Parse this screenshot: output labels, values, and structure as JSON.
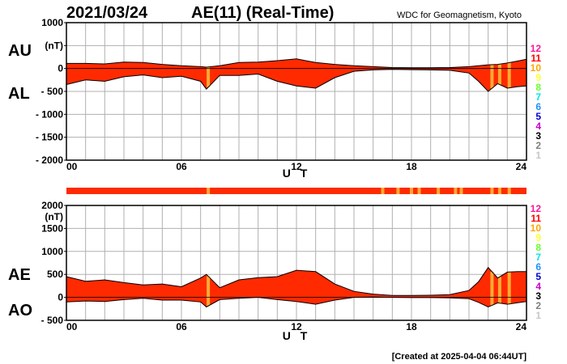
{
  "header": {
    "date": "2021/03/24",
    "index_title": "AE(11) (Real-Time)",
    "organization": "WDC for Geomagnetism, Kyoto"
  },
  "footer": {
    "created": "[Created at 2025-04-04 06:44UT]"
  },
  "quality_legend": {
    "levels": [
      "12",
      "11",
      "10",
      "9",
      "8",
      "7",
      "6",
      "5",
      "4",
      "3",
      "2",
      "1"
    ],
    "colors": [
      "#ff1493",
      "#ff0000",
      "#ffa500",
      "#ffff33",
      "#66ff33",
      "#00e5ee",
      "#1e90ff",
      "#0000cd",
      "#cc00cc",
      "#000000",
      "#7f7f7f",
      "#c8c8c8"
    ]
  },
  "colors": {
    "fill": "#ff2a00",
    "highlight": "#ffaa33",
    "bar": "#ff2a00",
    "grid": "#b0b0b0"
  },
  "chart_data": [
    {
      "type": "area",
      "panel": "AU/AL",
      "ylabel_top": "AU",
      "ylabel_bottom": "AL",
      "unit": "(nT)",
      "ylim": [
        -2000,
        1000
      ],
      "yticks": [
        1000,
        500,
        0,
        -500,
        -1000,
        -1500,
        -2000
      ],
      "ytick_labels": [
        "1000",
        "(nT)",
        "0",
        "- 500",
        "- 1000",
        "- 1500",
        "- 2000"
      ],
      "xlim": [
        0,
        24
      ],
      "xticks": [
        0,
        6,
        12,
        18,
        24
      ],
      "xtick_labels": [
        "00",
        "06",
        "12",
        "18",
        "24"
      ],
      "xlabel": "U T",
      "grid": true,
      "x": [
        0,
        1,
        2,
        3,
        4,
        5,
        6,
        7,
        7.3,
        8,
        9,
        10,
        11,
        12,
        13,
        14,
        15,
        16,
        17,
        18,
        19,
        20,
        21,
        21.5,
        22,
        22.5,
        23,
        23.5,
        24
      ],
      "series": [
        {
          "name": "AU",
          "values": [
            110,
            110,
            100,
            140,
            130,
            90,
            60,
            40,
            30,
            60,
            130,
            140,
            170,
            210,
            130,
            90,
            60,
            40,
            20,
            15,
            15,
            20,
            40,
            60,
            80,
            90,
            120,
            160,
            200
          ]
        },
        {
          "name": "AL",
          "values": [
            -350,
            -250,
            -280,
            -180,
            -140,
            -200,
            -170,
            -280,
            -450,
            -150,
            -150,
            -120,
            -280,
            -380,
            -430,
            -200,
            -60,
            -30,
            -20,
            -25,
            -30,
            -40,
            -100,
            -280,
            -500,
            -330,
            -430,
            -400,
            -380
          ]
        }
      ],
      "highlight_hours": [
        7.4,
        22.2,
        22.6,
        23.1
      ]
    },
    {
      "type": "area",
      "panel": "AE/AO",
      "ylabel_top": "AE",
      "ylabel_bottom": "AO",
      "unit": "(nT)",
      "ylim": [
        -500,
        2000
      ],
      "yticks": [
        2000,
        1500,
        1000,
        500,
        0,
        -500
      ],
      "ytick_labels": [
        "2000",
        "1500",
        "1000",
        "500",
        "0",
        "- 500"
      ],
      "xlim": [
        0,
        24
      ],
      "xticks": [
        0,
        6,
        12,
        18,
        24
      ],
      "xtick_labels": [
        "00",
        "06",
        "12",
        "18",
        "24"
      ],
      "xlabel": "U T",
      "grid": true,
      "x": [
        0,
        1,
        2,
        3,
        4,
        5,
        6,
        7,
        7.3,
        8,
        9,
        10,
        11,
        12,
        13,
        14,
        15,
        16,
        17,
        18,
        19,
        20,
        21,
        21.5,
        22,
        22.5,
        23,
        23.5,
        24
      ],
      "series": [
        {
          "name": "AE",
          "values": [
            450,
            350,
            380,
            320,
            270,
            290,
            230,
            420,
            500,
            210,
            380,
            430,
            450,
            590,
            560,
            290,
            130,
            70,
            40,
            40,
            45,
            60,
            150,
            340,
            650,
            420,
            550,
            560,
            560
          ]
        },
        {
          "name": "AO",
          "values": [
            -100,
            -80,
            -90,
            -50,
            -20,
            -60,
            -60,
            -100,
            -210,
            -50,
            -20,
            0,
            -50,
            -90,
            -150,
            -60,
            0,
            5,
            0,
            -5,
            -5,
            -10,
            -30,
            -110,
            -210,
            -120,
            -150,
            -120,
            -90
          ]
        }
      ],
      "highlight_hours": [
        7.4,
        22.2,
        22.6,
        23.1
      ]
    }
  ],
  "status_bar": {
    "marks_hours": [
      7.4,
      16.5,
      17.3,
      18.0,
      18.4,
      19.4,
      20.3,
      20.6,
      22.2,
      22.6,
      23.1
    ]
  }
}
